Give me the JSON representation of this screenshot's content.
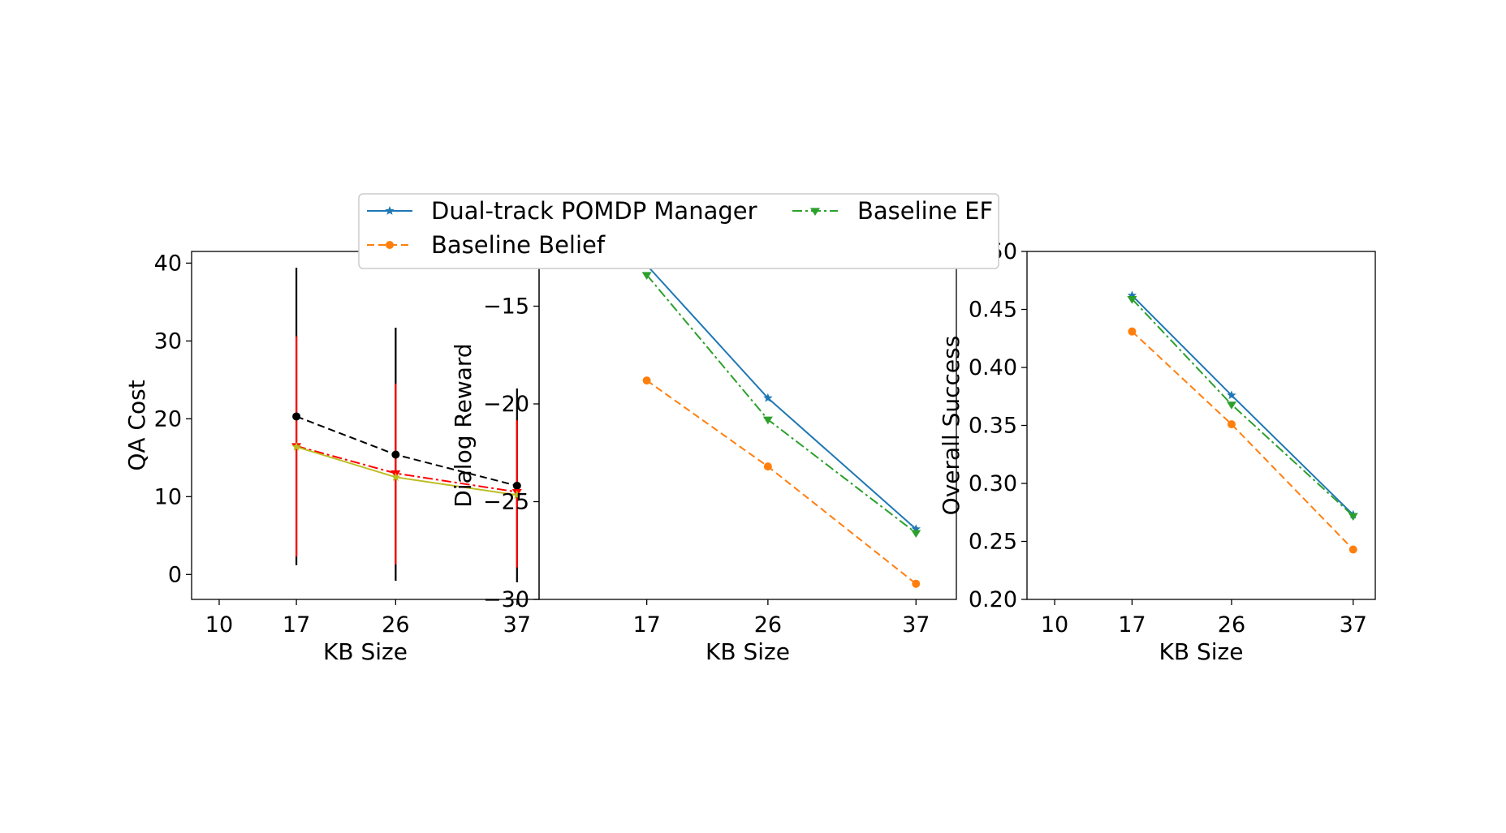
{
  "legend": {
    "entries": [
      {
        "label": "Dual-track POMDP Manager",
        "color": "#1f77b4",
        "dash": "solid",
        "marker": "star"
      },
      {
        "label": "Baseline EF",
        "color": "#2ca02c",
        "dash": "dashdot",
        "marker": "tri_down"
      },
      {
        "label": "Baseline Belief",
        "color": "#ff7f0e",
        "dash": "dashed",
        "marker": "circle"
      }
    ]
  },
  "chart_data": [
    {
      "type": "line",
      "xlabel": "KB Size",
      "ylabel": "QA Cost",
      "xlim": [
        7.5,
        39
      ],
      "ylim": [
        -3.2,
        41.5
      ],
      "xticks": [
        10,
        17,
        26,
        37
      ],
      "yticks": [
        0,
        10,
        20,
        30,
        40
      ],
      "x": [
        17,
        26,
        37
      ],
      "series": [
        {
          "style_id": "black",
          "color": "#000000",
          "dash": "dashed",
          "marker": "circle",
          "values": [
            20.3,
            15.4,
            11.4
          ],
          "err_low": [
            1.2,
            -0.8,
            -1.0
          ],
          "err_high": [
            39.4,
            31.7,
            23.9
          ],
          "err_color": "#000000"
        },
        {
          "style_id": "red",
          "color": "#ff0000",
          "dash": "dashdot",
          "marker": "tri_down",
          "values": [
            16.5,
            13.0,
            10.6
          ],
          "err_low": [
            2.3,
            1.3,
            0.9
          ],
          "err_high": [
            30.6,
            24.5,
            19.8
          ],
          "err_color": "#ff0000"
        },
        {
          "style_id": "yellow",
          "color": "#bcbd22",
          "dash": "solid",
          "marker": "star",
          "values": [
            16.4,
            12.5,
            10.2
          ]
        }
      ]
    },
    {
      "type": "line",
      "xlabel": "KB Size",
      "ylabel": "Dialog Reward",
      "xlim": [
        9,
        40
      ],
      "ylim": [
        -30,
        -12.2
      ],
      "xticks": [
        17,
        26,
        37
      ],
      "yticks": [
        -15,
        -20,
        -25,
        -30
      ],
      "x": [
        17,
        26,
        37
      ],
      "series": [
        {
          "name": "Dual-track POMDP Manager",
          "color": "#1f77b4",
          "dash": "solid",
          "marker": "star",
          "values": [
            -12.9,
            -19.7,
            -26.4
          ]
        },
        {
          "name": "Baseline EF",
          "color": "#2ca02c",
          "dash": "dashdot",
          "marker": "tri_down",
          "values": [
            -13.4,
            -20.8,
            -26.6
          ]
        },
        {
          "name": "Baseline Belief",
          "color": "#ff7f0e",
          "dash": "dashed",
          "marker": "circle",
          "values": [
            -18.8,
            -23.2,
            -29.2
          ]
        }
      ]
    },
    {
      "type": "line",
      "xlabel": "KB Size",
      "ylabel": "Overall Success",
      "xlim": [
        7.5,
        39
      ],
      "ylim": [
        0.2,
        0.5
      ],
      "xticks": [
        10,
        17,
        26,
        37
      ],
      "yticks": [
        0.2,
        0.25,
        0.3,
        0.35,
        0.4,
        0.45,
        0.5
      ],
      "ytick_labels": [
        "0.20",
        "0.25",
        "0.30",
        "0.35",
        "0.40",
        "0.45",
        "0.50"
      ],
      "x": [
        17,
        26,
        37
      ],
      "series": [
        {
          "name": "Dual-track POMDP Manager",
          "color": "#1f77b4",
          "dash": "solid",
          "marker": "star",
          "values": [
            0.462,
            0.376,
            0.273
          ]
        },
        {
          "name": "Baseline EF",
          "color": "#2ca02c",
          "dash": "dashdot",
          "marker": "tri_down",
          "values": [
            0.459,
            0.368,
            0.272
          ]
        },
        {
          "name": "Baseline Belief",
          "color": "#ff7f0e",
          "dash": "dashed",
          "marker": "circle",
          "values": [
            0.431,
            0.351,
            0.243
          ]
        }
      ]
    }
  ]
}
